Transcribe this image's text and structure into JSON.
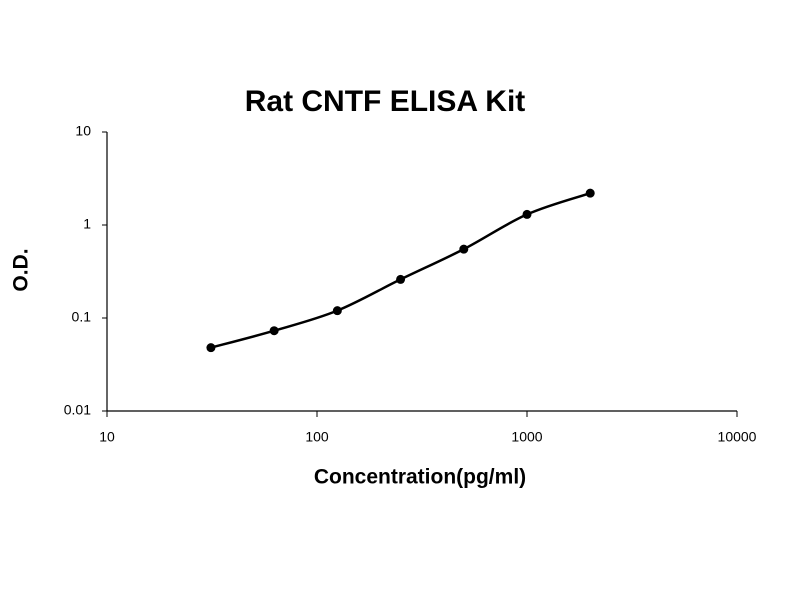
{
  "chart_data": {
    "type": "scatter",
    "title": "Rat CNTF ELISA Kit",
    "xlabel": "Concentration(pg/ml)",
    "ylabel": "O.D.",
    "x": [
      31.25,
      62.5,
      125,
      250,
      500,
      1000,
      2000
    ],
    "series": [
      {
        "color": "#000000",
        "values": [
          0.048,
          0.073,
          0.12,
          0.26,
          0.55,
          1.3,
          2.2
        ]
      }
    ],
    "xscale": "log",
    "yscale": "log",
    "xlim": [
      10,
      10000
    ],
    "ylim": [
      0.01,
      10
    ],
    "xticks": [
      10,
      100,
      1000,
      10000
    ],
    "yticks": [
      0.01,
      0.1,
      1,
      10
    ]
  }
}
